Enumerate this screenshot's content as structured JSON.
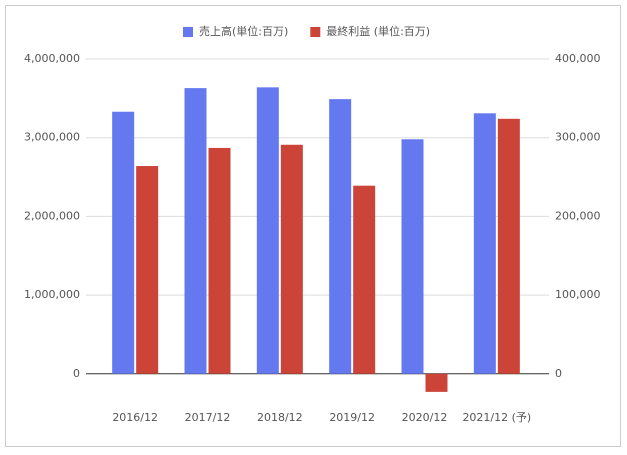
{
  "chart_data": {
    "type": "bar",
    "categories": [
      "2016/12",
      "2017/12",
      "2018/12",
      "2019/12",
      "2020/12",
      "2021/12 (予)"
    ],
    "series": [
      {
        "name": "売上高(単位:百万)",
        "color": "#6479f0",
        "values": [
          3330000,
          3630000,
          3640000,
          3490000,
          2980000,
          3310000
        ]
      },
      {
        "name": "最終利益 (単位:百万)",
        "color": "#cc4438",
        "axis": "y2",
        "values": [
          264000,
          287000,
          291000,
          239000,
          -23000,
          324000
        ]
      }
    ],
    "ylim": [
      -333333,
      4000000
    ],
    "yticks": [
      0,
      {
        "value": 1000000,
        "label": "1,000,000"
      },
      {
        "value": 2000000,
        "label": "2,000,000"
      },
      {
        "value": 3000000,
        "label": "3,000,000"
      },
      {
        "value": 4000000,
        "label": "4,000,000"
      }
    ],
    "y2lim": [
      -33333,
      400000
    ],
    "y2ticks": [
      0,
      {
        "value": 100000,
        "label": "100,000"
      },
      {
        "value": 200000,
        "label": "200,000"
      },
      {
        "value": 300000,
        "label": "300,000"
      },
      {
        "value": 400000,
        "label": "400,000"
      }
    ],
    "grid": true,
    "legend": "top"
  }
}
